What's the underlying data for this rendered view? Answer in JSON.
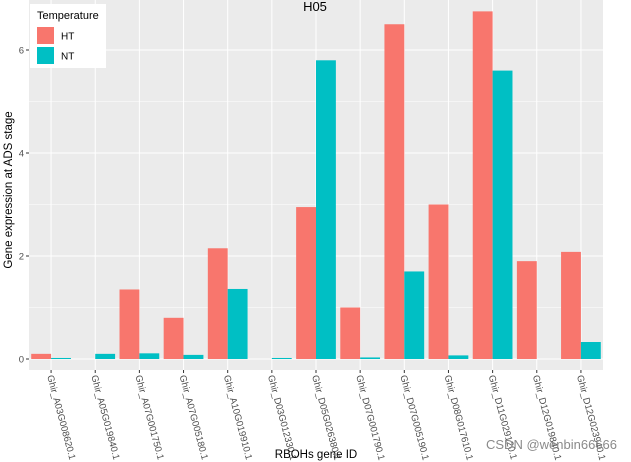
{
  "chart_data": {
    "type": "bar",
    "title": "H05",
    "xlabel": "RBOHs gene ID",
    "ylabel": "Gene expression at ADS stage",
    "categories": [
      "Ghir_A03G008620.1",
      "Ghir_A05G019840.1",
      "Ghir_A07G001750.1",
      "Ghir_A07G005180.1",
      "Ghir_A10G019910.1",
      "Ghir_D03G012330.1",
      "Ghir_D05G026380.1",
      "Ghir_D07G001790.1",
      "Ghir_D07G005190.1",
      "Ghir_D08G017610.1",
      "Ghir_D11G029120.1",
      "Ghir_D12G019840.1",
      "Ghir_D12G023940.1"
    ],
    "series": [
      {
        "name": "HT",
        "color": "#F8766D",
        "values": [
          0.1,
          0.0,
          1.35,
          0.8,
          2.15,
          0.0,
          2.95,
          1.0,
          6.5,
          3.0,
          6.75,
          1.9,
          2.08
        ]
      },
      {
        "name": "NT",
        "color": "#00BFC4",
        "values": [
          0.02,
          0.1,
          0.11,
          0.08,
          1.36,
          0.02,
          5.8,
          0.03,
          1.7,
          0.07,
          5.6,
          0.0,
          0.33
        ]
      }
    ],
    "ylim": [
      0,
      7
    ],
    "yticks": [
      0,
      2,
      4,
      6
    ],
    "legend": {
      "title": "Temperature",
      "position": "top-left"
    },
    "grid": true,
    "panel_background": "#EBEBEB"
  },
  "watermark": "CSDN @wenbin66666"
}
